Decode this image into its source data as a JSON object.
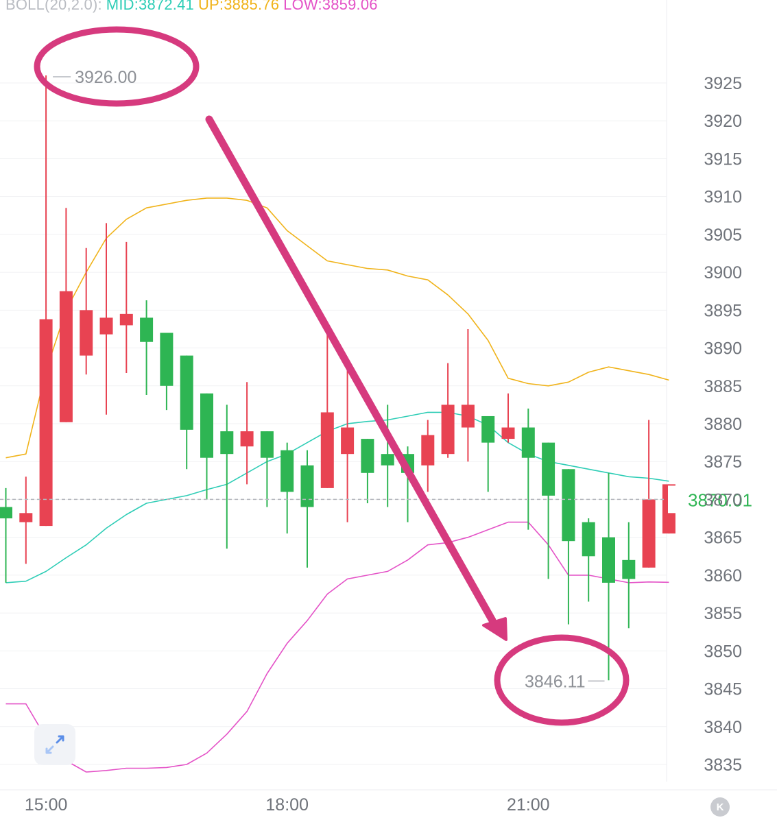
{
  "legend": {
    "name": "BOLL(20,2.0):",
    "mid": "MID:3872.41",
    "up": "UP:3885.76",
    "low": "LOW:3859.06"
  },
  "colors": {
    "up_candle": "#e84352",
    "down_candle": "#2eb553",
    "mid_line": "#2ecdb6",
    "upper_band": "#f0b31a",
    "lower_band": "#e452c7",
    "annotation": "#d63a7e",
    "axis_text": "#6f737a",
    "current_price": "#2eb553"
  },
  "icons": {
    "zoom": "expand-arrows-icon",
    "logo": "k-logo-icon"
  },
  "chart_data": {
    "type": "candlestick",
    "y_axis": {
      "range": [
        3832.5,
        3929
      ],
      "ticks": [
        3925,
        3920,
        3915,
        3910,
        3905,
        3900,
        3895,
        3890,
        3885,
        3880,
        3875,
        3870,
        3865,
        3860,
        3855,
        3850,
        3845,
        3840,
        3835
      ],
      "tick_labels": [
        "3925",
        "3920",
        "3915",
        "3910",
        "3905",
        "3900",
        "3895",
        "3890",
        "3885",
        "3880",
        "3875",
        "3870",
        "3865",
        "3860",
        "3855",
        "3850",
        "3845",
        "3840",
        "3835"
      ]
    },
    "x_axis": {
      "labels": [
        {
          "index": 2,
          "label": "15:00"
        },
        {
          "index": 14,
          "label": "18:00"
        },
        {
          "index": 26,
          "label": "21:00"
        }
      ]
    },
    "current_price": {
      "value": 3870.01,
      "label": "3870.01"
    },
    "high_marker": {
      "value": 3926.0,
      "label": "3926.00",
      "index": 2
    },
    "low_marker": {
      "value": 3846.11,
      "label": "3846.11",
      "index": 30
    },
    "candles": [
      {
        "o": 3869.0,
        "h": 3871.5,
        "l": 3859.0,
        "c": 3867.5
      },
      {
        "o": 3867.0,
        "h": 3873.0,
        "l": 3861.5,
        "c": 3868.2
      },
      {
        "o": 3866.5,
        "h": 3926.0,
        "l": 3866.5,
        "c": 3893.8
      },
      {
        "o": 3880.2,
        "h": 3908.5,
        "l": 3880.2,
        "c": 3897.5
      },
      {
        "o": 3889.0,
        "h": 3903.2,
        "l": 3886.5,
        "c": 3895.0
      },
      {
        "o": 3891.8,
        "h": 3906.5,
        "l": 3881.2,
        "c": 3894.0
      },
      {
        "o": 3893.0,
        "h": 3904.0,
        "l": 3886.7,
        "c": 3894.5
      },
      {
        "o": 3894.0,
        "h": 3896.3,
        "l": 3883.8,
        "c": 3890.8
      },
      {
        "o": 3892.0,
        "h": 3892.0,
        "l": 3881.8,
        "c": 3885.0
      },
      {
        "o": 3889.0,
        "h": 3889.0,
        "l": 3874.0,
        "c": 3879.2
      },
      {
        "o": 3884.0,
        "h": 3884.0,
        "l": 3870.0,
        "c": 3875.5
      },
      {
        "o": 3879.0,
        "h": 3882.5,
        "l": 3863.5,
        "c": 3876.0
      },
      {
        "o": 3877.0,
        "h": 3885.5,
        "l": 3872.0,
        "c": 3879.0
      },
      {
        "o": 3879.0,
        "h": 3879.0,
        "l": 3869.0,
        "c": 3875.5
      },
      {
        "o": 3876.5,
        "h": 3877.5,
        "l": 3865.5,
        "c": 3871.0
      },
      {
        "o": 3874.5,
        "h": 3876.5,
        "l": 3861.0,
        "c": 3869.0
      },
      {
        "o": 3871.5,
        "h": 3892.5,
        "l": 3871.5,
        "c": 3881.5
      },
      {
        "o": 3876.0,
        "h": 3888.5,
        "l": 3867.0,
        "c": 3879.5
      },
      {
        "o": 3878.0,
        "h": 3878.0,
        "l": 3869.5,
        "c": 3873.5
      },
      {
        "o": 3876.0,
        "h": 3882.5,
        "l": 3869.0,
        "c": 3874.5
      },
      {
        "o": 3876.0,
        "h": 3877.0,
        "l": 3867.0,
        "c": 3873.5
      },
      {
        "o": 3874.5,
        "h": 3880.5,
        "l": 3871.0,
        "c": 3878.5
      },
      {
        "o": 3876.0,
        "h": 3888.0,
        "l": 3875.5,
        "c": 3882.5
      },
      {
        "o": 3879.5,
        "h": 3892.5,
        "l": 3875.0,
        "c": 3882.5
      },
      {
        "o": 3881.0,
        "h": 3881.0,
        "l": 3871.0,
        "c": 3877.5
      },
      {
        "o": 3878.0,
        "h": 3884.0,
        "l": 3877.5,
        "c": 3879.5
      },
      {
        "o": 3879.5,
        "h": 3882.0,
        "l": 3866.0,
        "c": 3875.5
      },
      {
        "o": 3877.5,
        "h": 3877.5,
        "l": 3859.5,
        "c": 3870.5
      },
      {
        "o": 3874.0,
        "h": 3874.0,
        "l": 3853.5,
        "c": 3864.5
      },
      {
        "o": 3867.0,
        "h": 3867.5,
        "l": 3856.5,
        "c": 3862.5
      },
      {
        "o": 3865.0,
        "h": 3873.5,
        "l": 3846.11,
        "c": 3859.0
      },
      {
        "o": 3862.0,
        "h": 3867.0,
        "l": 3853.0,
        "c": 3859.5
      },
      {
        "o": 3861.0,
        "h": 3880.5,
        "l": 3861.0,
        "c": 3870.0
      },
      {
        "o": 3865.5,
        "h": 3872.0,
        "l": 3865.5,
        "c": 3872.0
      }
    ],
    "series": [
      {
        "name": "MID",
        "values": [
          3859.0,
          3859.2,
          3860.5,
          3862.3,
          3864.0,
          3866.2,
          3868.0,
          3869.5,
          3870.0,
          3870.5,
          3871.3,
          3872.0,
          3873.5,
          3875.0,
          3876.0,
          3877.5,
          3879.0,
          3880.0,
          3880.3,
          3880.5,
          3881.0,
          3881.5,
          3881.5,
          3881.0,
          3879.8,
          3877.5,
          3876.0,
          3875.0,
          3874.5,
          3874.0,
          3873.5,
          3873.0,
          3872.8,
          3872.41
        ]
      },
      {
        "name": "UP",
        "values": [
          3875.5,
          3876.0,
          3887.0,
          3895.0,
          3900.0,
          3904.5,
          3907.0,
          3908.5,
          3909.0,
          3909.5,
          3909.8,
          3909.8,
          3909.5,
          3908.5,
          3905.5,
          3903.5,
          3901.5,
          3901.0,
          3900.5,
          3900.3,
          3899.5,
          3899.0,
          3897.0,
          3894.5,
          3891.0,
          3886.0,
          3885.3,
          3885.0,
          3885.5,
          3886.8,
          3887.5,
          3887.0,
          3886.5,
          3885.76
        ]
      },
      {
        "name": "LOW",
        "values": [
          3843.0,
          3843.0,
          3838.5,
          3835.5,
          3834.0,
          3834.2,
          3834.5,
          3834.5,
          3834.6,
          3835.0,
          3836.5,
          3839.0,
          3842.0,
          3847.0,
          3851.0,
          3854.0,
          3857.5,
          3859.5,
          3860.0,
          3860.5,
          3862.0,
          3864.0,
          3864.3,
          3865.0,
          3866.0,
          3867.0,
          3867.0,
          3864.0,
          3860.0,
          3860.0,
          3859.5,
          3859.0,
          3859.1,
          3859.06
        ]
      }
    ]
  }
}
